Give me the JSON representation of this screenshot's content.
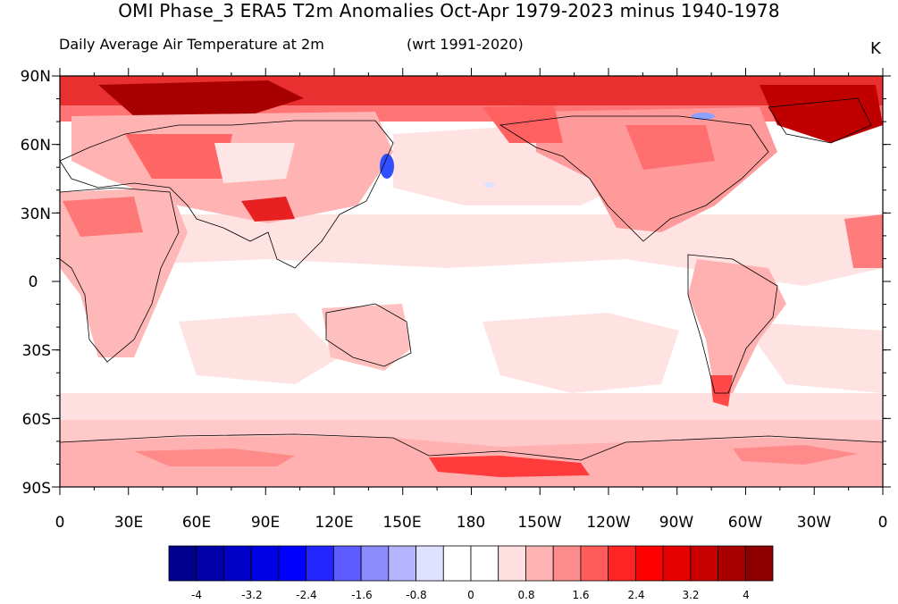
{
  "title": "OMI Phase_3 ERA5 T2m Anomalies Oct-Apr 1979-2023 minus 1940-1978",
  "subtitle_left": "Daily Average Air Temperature at 2m",
  "subtitle_mid": "(wrt 1991-2020)",
  "units": "K",
  "lat_labels": [
    "90N",
    "60N",
    "30N",
    "0",
    "30S",
    "60S",
    "90S"
  ],
  "lon_labels": [
    "0",
    "30E",
    "60E",
    "90E",
    "120E",
    "150E",
    "180",
    "150W",
    "120W",
    "90W",
    "60W",
    "30W",
    "0"
  ],
  "colorbar": {
    "labels": [
      "-4",
      "-3.2",
      "-2.4",
      "-1.6",
      "-0.8",
      "0",
      "0.8",
      "1.6",
      "2.4",
      "3.2",
      "4"
    ],
    "colors": [
      "#00008e",
      "#0000a8",
      "#0000c8",
      "#0000e6",
      "#0000ff",
      "#2424ff",
      "#5c5cff",
      "#8c8cff",
      "#b4b4ff",
      "#e0e0ff",
      "#ffffff",
      "#ffffff",
      "#ffe0e0",
      "#ffb4b4",
      "#ff8c8c",
      "#ff5c5c",
      "#ff2424",
      "#ff0000",
      "#e60000",
      "#c80000",
      "#a80000",
      "#8e0000"
    ]
  },
  "map_palette": {
    "light": "#ffd9d9",
    "mid": "#ffa9a9",
    "strong": "#ff4a4a",
    "deep": "#d00000",
    "darkest": "#8e0000",
    "cold": "#3050ff"
  }
}
